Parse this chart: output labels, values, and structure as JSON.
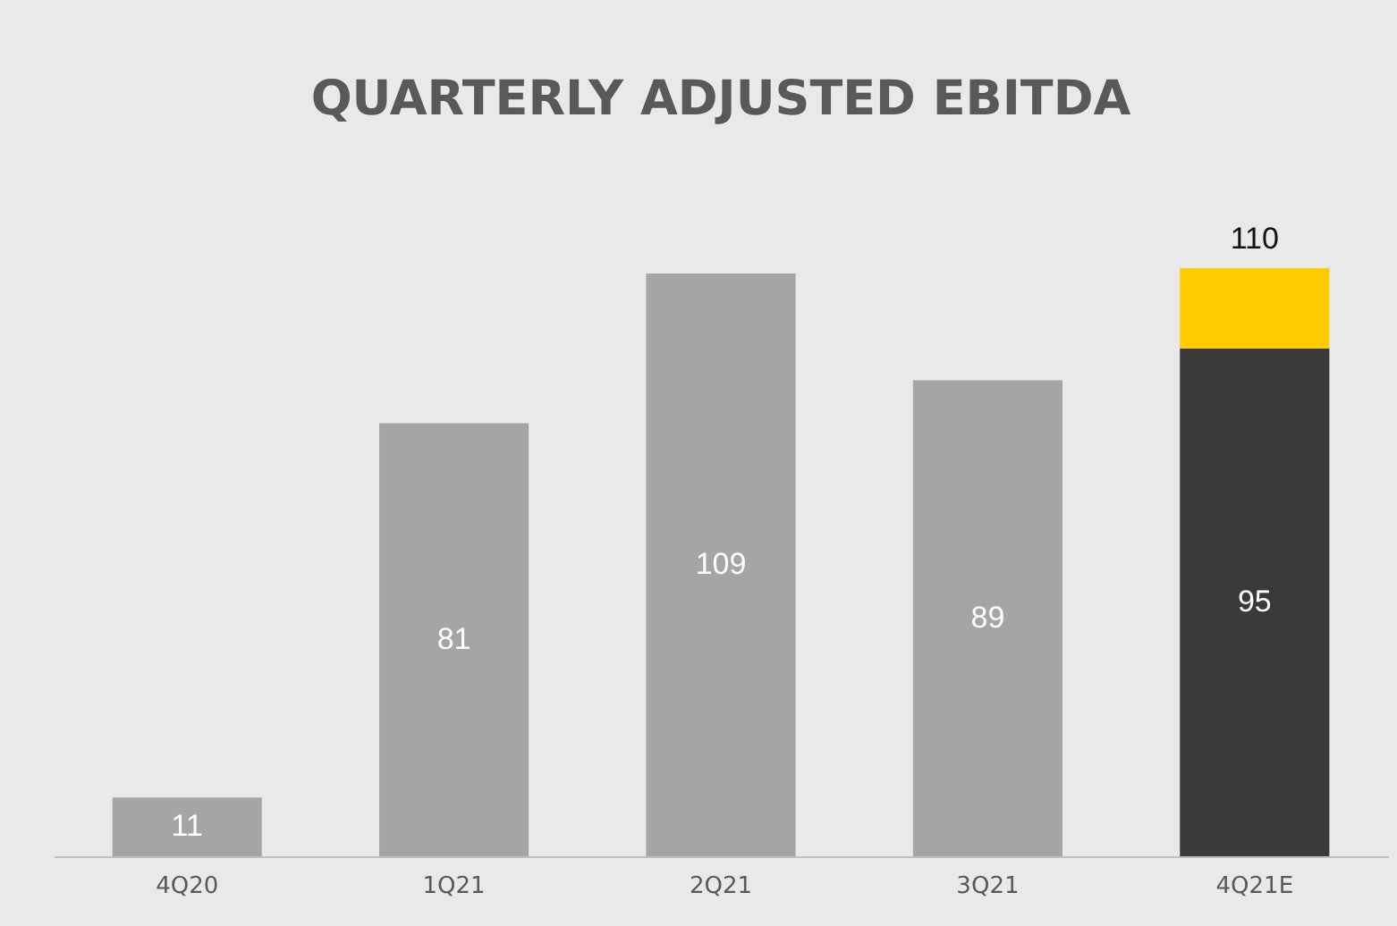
{
  "chart_data": {
    "type": "bar",
    "title": "QUARTERLY ADJUSTED EBITDA",
    "stacked": true,
    "categories": [
      "4Q20",
      "1Q21",
      "2Q21",
      "3Q21",
      "4Q21E"
    ],
    "series": [
      {
        "color": "#a5a5a5",
        "values": [
          11,
          81,
          109,
          89,
          null
        ],
        "value_labels": [
          "11",
          "81",
          "109",
          "89",
          null
        ]
      },
      {
        "color": "#3b3a39",
        "values": [
          null,
          null,
          null,
          null,
          95
        ],
        "value_labels": [
          null,
          null,
          null,
          null,
          "95"
        ]
      },
      {
        "color": "#ffcc00",
        "values": [
          null,
          null,
          null,
          null,
          15
        ]
      }
    ],
    "totals": [
      null,
      null,
      null,
      null,
      "110"
    ],
    "grid": false,
    "legend": false
  }
}
